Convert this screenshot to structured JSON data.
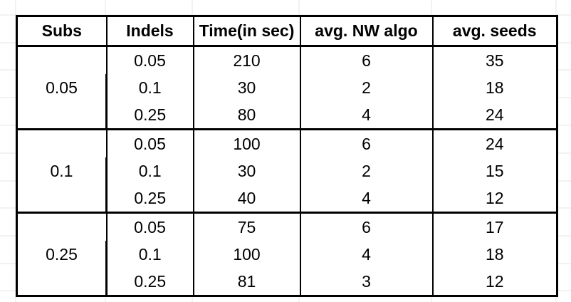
{
  "table": {
    "headers": [
      "Subs",
      "Indels",
      "Time(in sec)",
      "avg. NW algo",
      "avg. seeds"
    ],
    "groups": [
      {
        "subs": "0.05",
        "rows": [
          {
            "indels": "0.05",
            "time": "210",
            "nw": "6",
            "seeds": "35"
          },
          {
            "indels": "0.1",
            "time": "30",
            "nw": "2",
            "seeds": "18"
          },
          {
            "indels": "0.25",
            "time": "80",
            "nw": "4",
            "seeds": "24"
          }
        ]
      },
      {
        "subs": "0.1",
        "rows": [
          {
            "indels": "0.05",
            "time": "100",
            "nw": "6",
            "seeds": "24"
          },
          {
            "indels": "0.1",
            "time": "30",
            "nw": "2",
            "seeds": "15"
          },
          {
            "indels": "0.25",
            "time": "40",
            "nw": "4",
            "seeds": "12"
          }
        ]
      },
      {
        "subs": "0.25",
        "rows": [
          {
            "indels": "0.05",
            "time": "75",
            "nw": "6",
            "seeds": "17"
          },
          {
            "indels": "0.1",
            "time": "100",
            "nw": "4",
            "seeds": "18"
          },
          {
            "indels": "0.25",
            "time": "81",
            "nw": "3",
            "seeds": "12"
          }
        ]
      }
    ]
  },
  "colors": {
    "border": "#000000",
    "gridline": "#e4e4e4",
    "background": "#ffffff",
    "text": "#000000"
  }
}
